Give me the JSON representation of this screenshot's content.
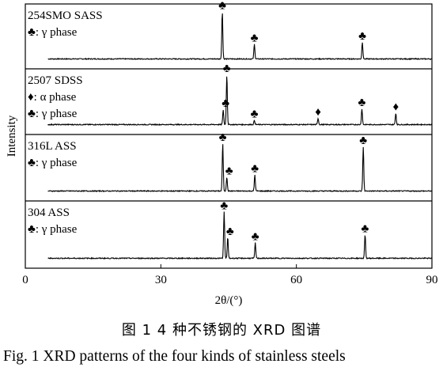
{
  "chart_data": {
    "type": "line",
    "xlabel": "2θ/(°)",
    "ylabel": "Intensity",
    "xlim": [
      0,
      90
    ],
    "xticks": [
      0,
      30,
      60,
      90
    ],
    "x_start": 5,
    "grid": false,
    "legend": "none",
    "markers": {
      "gamma": "♣",
      "alpha": "♦"
    },
    "panels": [
      {
        "name": "254SMO SASS",
        "labels": [
          "254SMO SASS",
          "♣: γ phase"
        ],
        "peaks": [
          {
            "x": 43.6,
            "height": 0.9,
            "phase": "gamma"
          },
          {
            "x": 50.7,
            "height": 0.28,
            "phase": "gamma"
          },
          {
            "x": 74.6,
            "height": 0.32,
            "phase": "gamma"
          }
        ]
      },
      {
        "name": "2507 SDSS",
        "labels": [
          "2507 SDSS",
          "♦: α phase",
          "♣: γ phase"
        ],
        "peaks": [
          {
            "x": 43.8,
            "height": 0.28,
            "phase": "gamma"
          },
          {
            "x": 44.6,
            "height": 0.94,
            "phase": "gamma"
          },
          {
            "x": 50.7,
            "height": 0.08,
            "phase": "gamma"
          },
          {
            "x": 64.8,
            "height": 0.12,
            "phase": "alpha"
          },
          {
            "x": 74.5,
            "height": 0.3,
            "phase": "gamma"
          },
          {
            "x": 82.0,
            "height": 0.22,
            "phase": "alpha"
          }
        ]
      },
      {
        "name": "316L ASS",
        "labels": [
          "316L ASS",
          "♣: γ phase"
        ],
        "peaks": [
          {
            "x": 43.7,
            "height": 0.88,
            "phase": "gamma"
          },
          {
            "x": 44.6,
            "height": 0.26,
            "phase": "gamma"
          },
          {
            "x": 50.8,
            "height": 0.3,
            "phase": "gamma"
          },
          {
            "x": 74.8,
            "height": 0.82,
            "phase": "gamma"
          }
        ]
      },
      {
        "name": "304 ASS",
        "labels": [
          "304 ASS",
          "♣: γ phase"
        ],
        "peaks": [
          {
            "x": 44.0,
            "height": 0.85,
            "phase": "gamma"
          },
          {
            "x": 44.8,
            "height": 0.38,
            "phase": "gamma"
          },
          {
            "x": 50.9,
            "height": 0.28,
            "phase": "gamma"
          },
          {
            "x": 75.2,
            "height": 0.43,
            "phase": "gamma"
          }
        ]
      }
    ]
  },
  "caption": {
    "cn": "图 1   4 种不锈钢的 XRD 图谱",
    "en": "Fig. 1    XRD patterns of the four kinds of stainless steels"
  }
}
